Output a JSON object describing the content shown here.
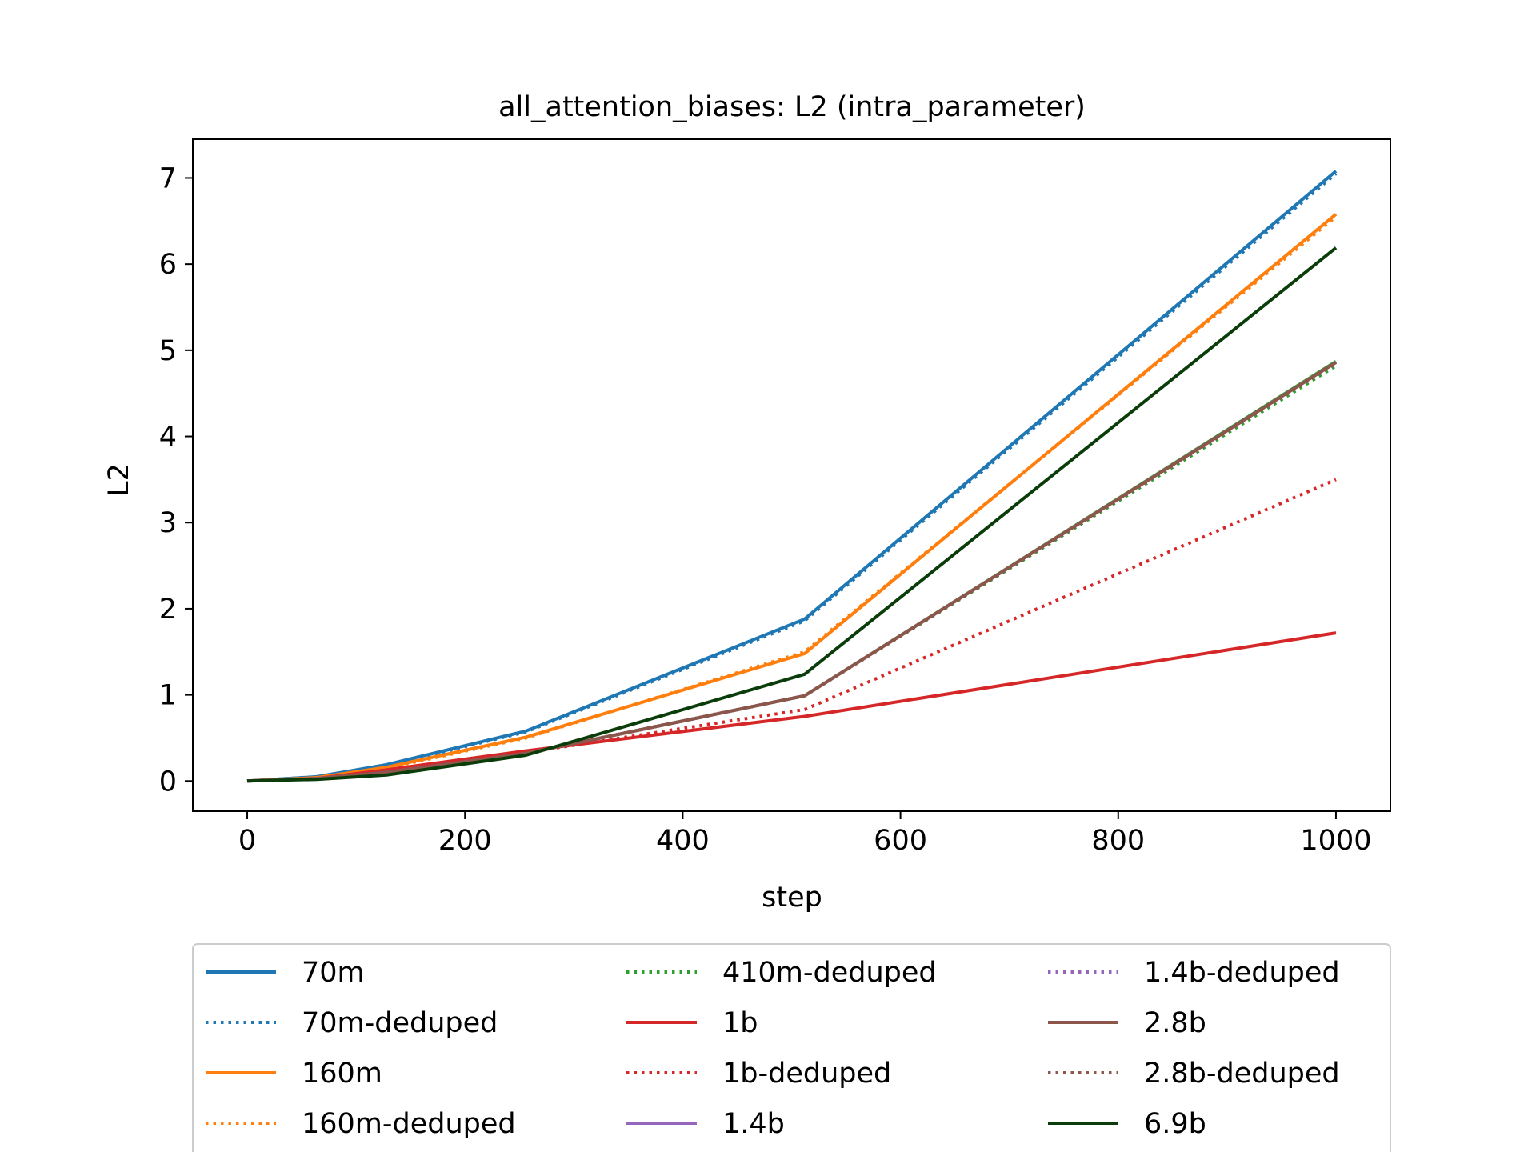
{
  "chart_data": {
    "type": "line",
    "title": "all_attention_biases: L2 (intra_parameter)",
    "xlabel": "step",
    "ylabel": "L2",
    "xlim": [
      -50,
      1050
    ],
    "ylim": [
      -0.35,
      7.45
    ],
    "x_ticks": [
      0,
      200,
      400,
      600,
      800,
      1000
    ],
    "y_ticks": [
      0,
      1,
      2,
      3,
      4,
      5,
      6,
      7
    ],
    "x": [
      0,
      64,
      128,
      256,
      512,
      1000
    ],
    "legend_position": "below",
    "series": [
      {
        "name": "70m",
        "color": "#1f77b4",
        "dash": "solid",
        "values": [
          0,
          0.05,
          0.19,
          0.58,
          1.88,
          7.08
        ]
      },
      {
        "name": "70m-deduped",
        "color": "#1f77b4",
        "dash": "dotted",
        "values": [
          0,
          0.05,
          0.18,
          0.57,
          1.86,
          7.05
        ]
      },
      {
        "name": "160m",
        "color": "#ff7f0e",
        "dash": "solid",
        "values": [
          0,
          0.04,
          0.16,
          0.51,
          1.48,
          6.58
        ]
      },
      {
        "name": "160m-deduped",
        "color": "#ff7f0e",
        "dash": "dotted",
        "values": [
          0,
          0.04,
          0.15,
          0.5,
          1.5,
          6.55
        ]
      },
      {
        "name": "410m-deduped",
        "color": "#2ca02c",
        "dash": "dotted",
        "values": [
          0,
          0.03,
          0.1,
          0.32,
          0.99,
          4.82
        ]
      },
      {
        "name": "1b",
        "color": "#d62728",
        "dash": "solid",
        "values": [
          0,
          0.03,
          0.13,
          0.35,
          0.75,
          1.72
        ]
      },
      {
        "name": "1b-deduped",
        "color": "#d62728",
        "dash": "dotted",
        "values": [
          0,
          0.03,
          0.12,
          0.33,
          0.83,
          3.5
        ]
      },
      {
        "name": "1.4b",
        "color": "#9467bd",
        "dash": "solid",
        "values": [
          0,
          0.03,
          0.1,
          0.32,
          0.99,
          4.86
        ]
      },
      {
        "name": "1.4b-deduped",
        "color": "#9467bd",
        "dash": "dotted",
        "values": [
          0,
          0.03,
          0.1,
          0.32,
          0.99,
          4.85
        ]
      },
      {
        "name": "2.8b",
        "color": "#8c564b",
        "dash": "solid",
        "values": [
          0,
          0.03,
          0.1,
          0.32,
          0.99,
          4.86
        ]
      },
      {
        "name": "2.8b-deduped",
        "color": "#8c564b",
        "dash": "dotted",
        "values": [
          0,
          0.03,
          0.1,
          0.32,
          0.99,
          4.85
        ]
      },
      {
        "name": "6.9b",
        "color": "#0b3d0b",
        "dash": "solid",
        "values": [
          0,
          0.02,
          0.07,
          0.3,
          1.24,
          6.19
        ]
      },
      {
        "name": "",
        "color": "#2ca02c",
        "dash": "solid",
        "values": [
          0,
          0.03,
          0.1,
          0.32,
          0.99,
          4.87
        ]
      }
    ]
  }
}
